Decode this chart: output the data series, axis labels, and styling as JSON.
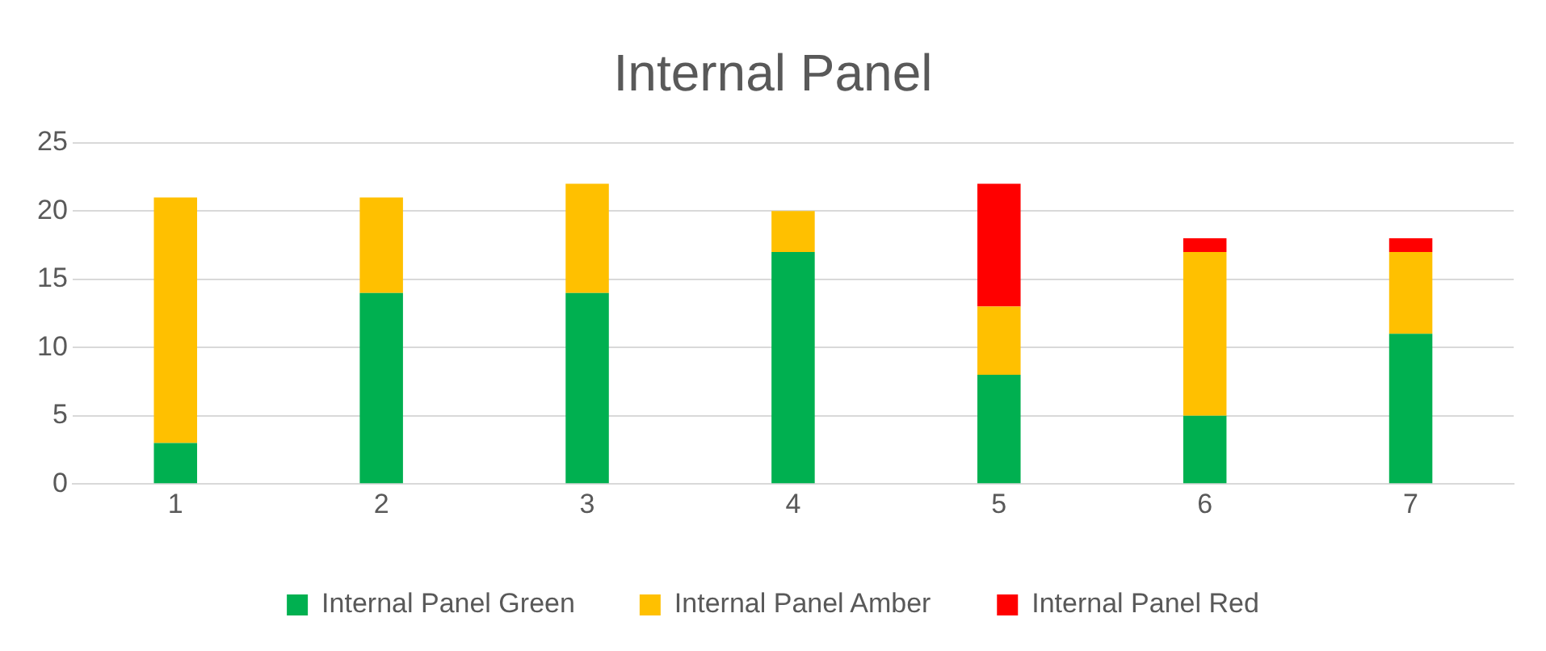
{
  "chart_data": {
    "type": "bar",
    "title": "Internal Panel",
    "stacked": true,
    "categories": [
      "1",
      "2",
      "3",
      "4",
      "5",
      "6",
      "7"
    ],
    "series": [
      {
        "name": "Internal Panel Green",
        "color": "#00b050",
        "values": [
          3,
          14,
          14,
          17,
          8,
          5,
          11
        ]
      },
      {
        "name": "Internal Panel Amber",
        "color": "#ffc000",
        "values": [
          18,
          7,
          8,
          3,
          5,
          12,
          6
        ]
      },
      {
        "name": "Internal Panel Red",
        "color": "#ff0000",
        "values": [
          null,
          null,
          null,
          null,
          9,
          1,
          1
        ]
      }
    ],
    "ylim": [
      0,
      25
    ],
    "yticks": [
      0,
      5,
      10,
      15,
      20,
      25
    ],
    "grid": "y",
    "legend": "bottom"
  }
}
